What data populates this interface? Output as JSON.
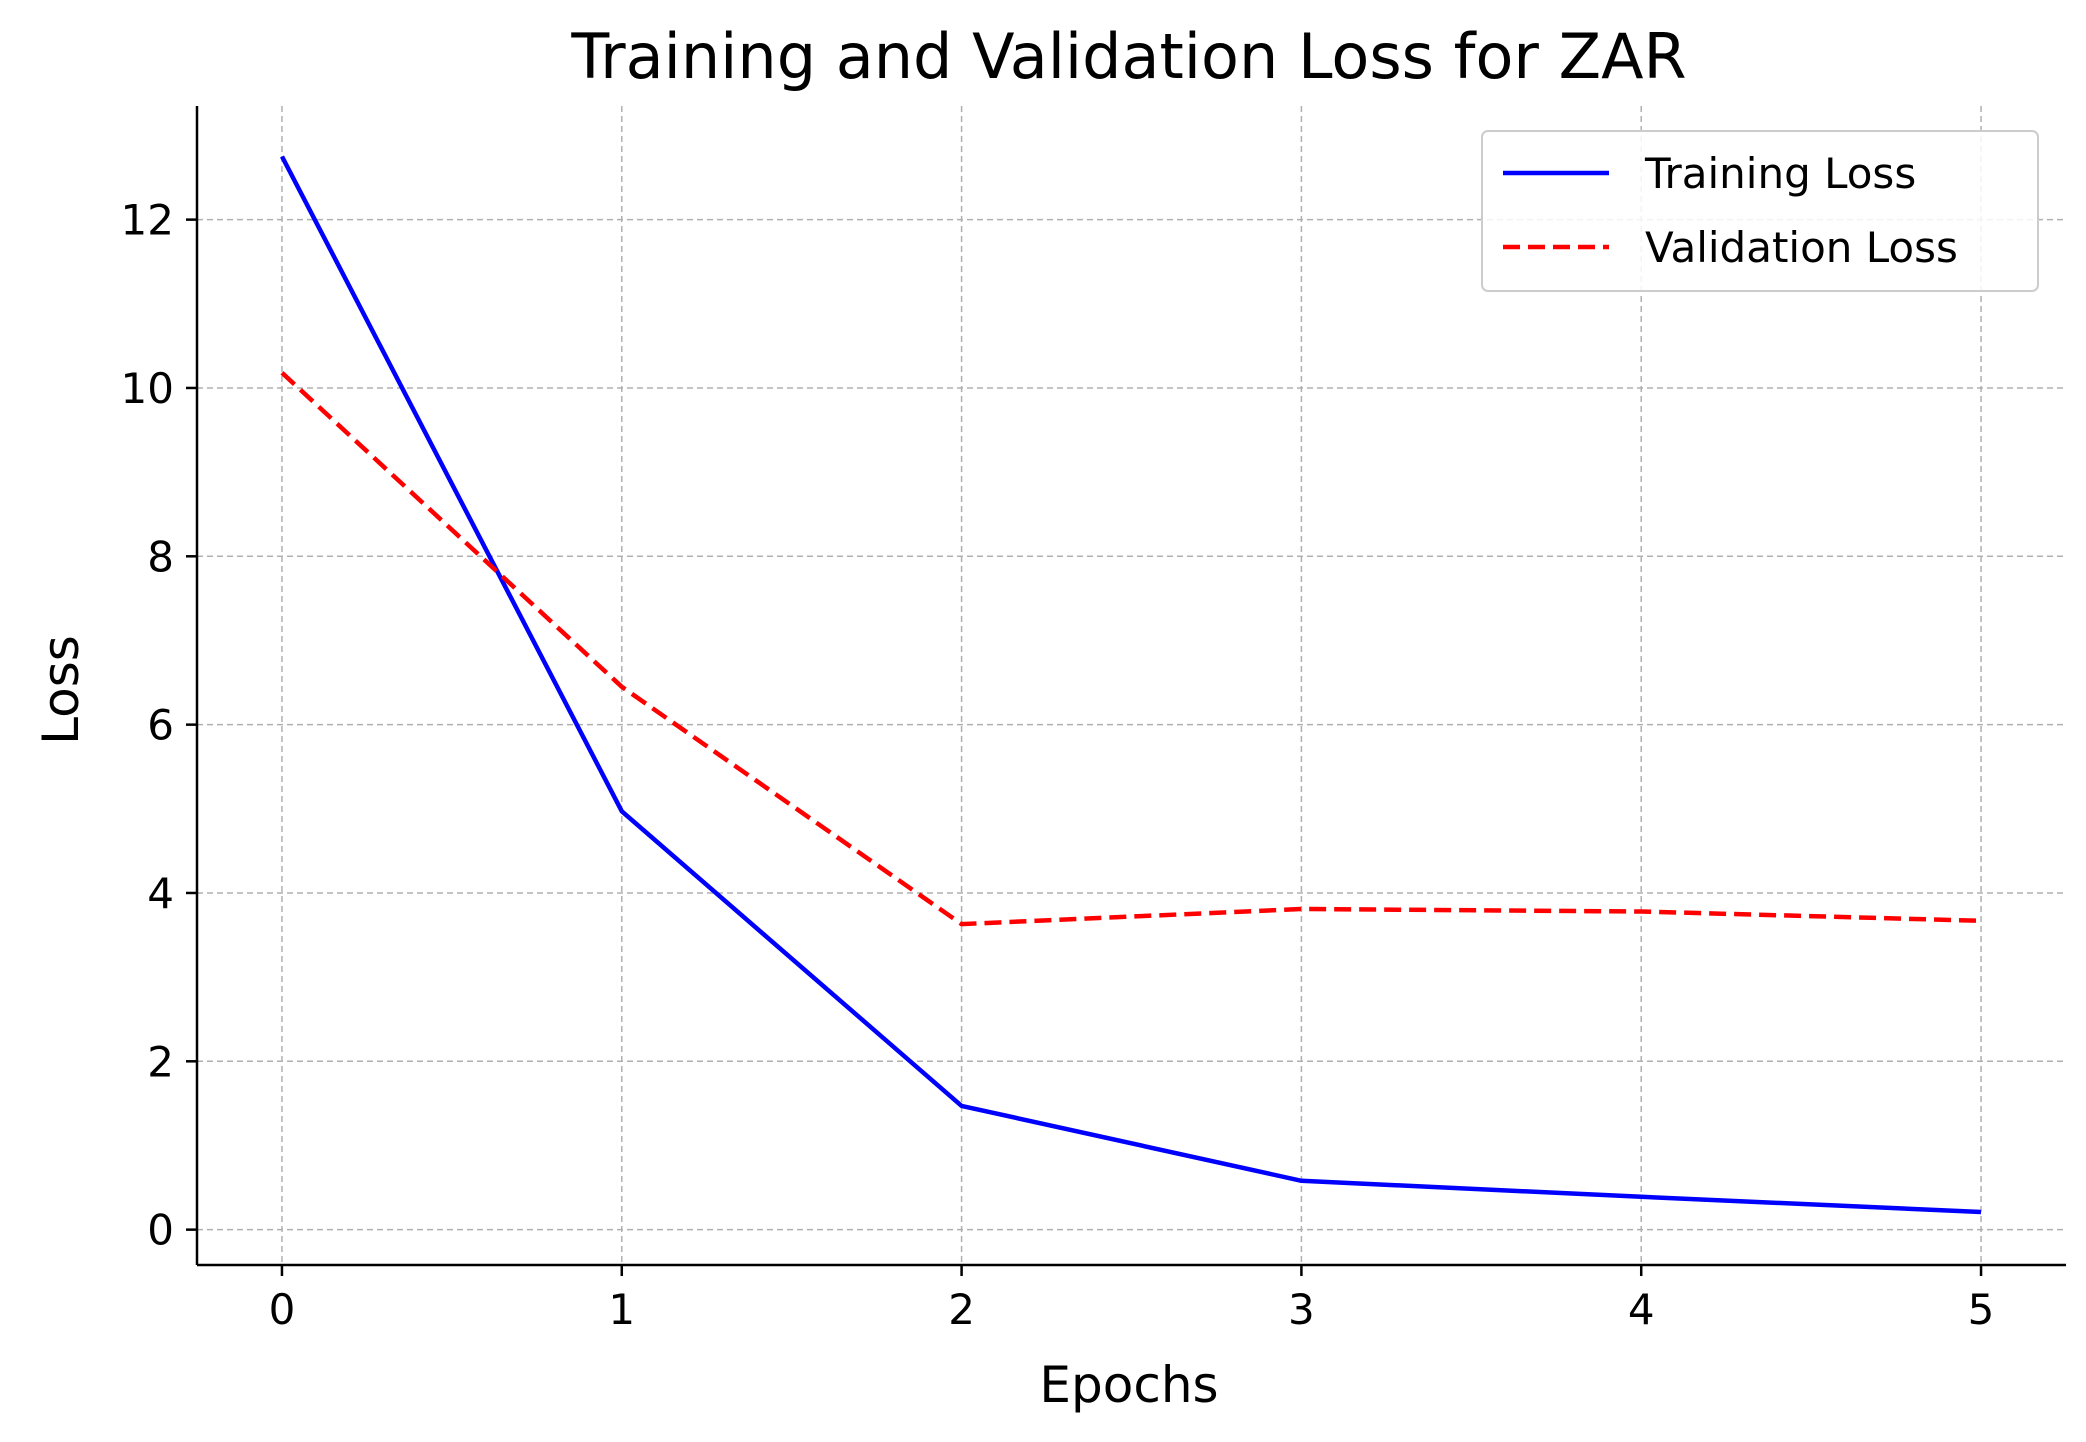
{
  "chart_data": {
    "type": "line",
    "title": "Training and Validation Loss for ZAR",
    "xlabel": "Epochs",
    "ylabel": "Loss",
    "x": [
      0,
      1,
      2,
      3,
      4,
      5
    ],
    "xlim": [
      -0.25,
      5.25
    ],
    "ylim": [
      -0.42,
      13.35
    ],
    "xticks": [
      0,
      1,
      2,
      3,
      4,
      5
    ],
    "yticks": [
      0,
      2,
      4,
      6,
      8,
      10,
      12
    ],
    "grid": true,
    "legend_position": "top-right",
    "series": [
      {
        "name": "Training Loss",
        "values": [
          12.75,
          4.97,
          1.47,
          0.58,
          0.39,
          0.21
        ],
        "color": "#0000ff",
        "style": "solid"
      },
      {
        "name": "Validation Loss",
        "values": [
          10.18,
          6.45,
          3.63,
          3.81,
          3.78,
          3.67
        ],
        "color": "#ff0000",
        "style": "dashed"
      }
    ]
  }
}
